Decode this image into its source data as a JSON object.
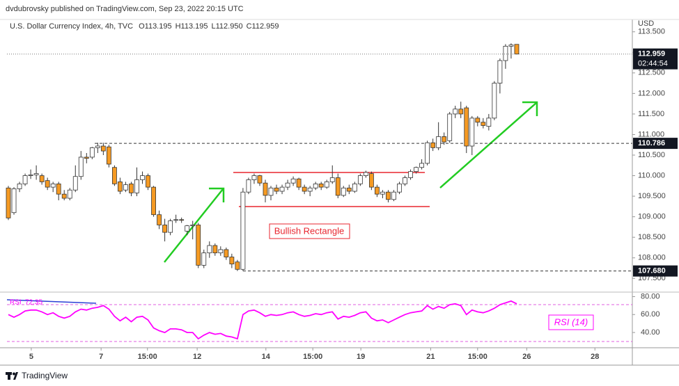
{
  "header": "dvdubrovsky published on TradingView.com, Sep 23, 2022 20:15 UTC",
  "footer": "TradingView",
  "chart_data": {
    "type": "candlestick",
    "legend": {
      "symbol": "U.S. Dollar Currency Index, 4h, TVC",
      "ohlc": [
        "O113.195",
        "H113.195",
        "L112.950",
        "C112.959"
      ]
    },
    "currency": "USD",
    "up_color": "#ffffff",
    "down_color": "#f59a23",
    "wick_color": "#333333",
    "candles": [
      [
        109.7,
        109.75,
        108.92,
        108.97
      ],
      [
        109.1,
        109.72,
        109.05,
        109.68
      ],
      [
        109.68,
        109.85,
        109.6,
        109.8
      ],
      [
        109.8,
        110.05,
        109.75,
        110.0
      ],
      [
        110.0,
        110.15,
        109.92,
        110.02
      ],
      [
        110.02,
        110.25,
        109.9,
        110.05
      ],
      [
        110.0,
        110.05,
        109.78,
        109.85
      ],
      [
        109.88,
        109.95,
        109.65,
        109.72
      ],
      [
        109.72,
        109.85,
        109.6,
        109.8
      ],
      [
        109.8,
        109.85,
        109.4,
        109.55
      ],
      [
        109.55,
        109.65,
        109.4,
        109.45
      ],
      [
        109.45,
        109.7,
        109.4,
        109.65
      ],
      [
        109.65,
        110.25,
        109.6,
        109.98
      ],
      [
        109.98,
        110.6,
        109.9,
        110.45
      ],
      [
        110.45,
        110.55,
        110.3,
        110.42
      ],
      [
        110.45,
        110.7,
        110.4,
        110.68
      ],
      [
        110.68,
        110.8,
        110.55,
        110.72
      ],
      [
        110.72,
        110.8,
        110.5,
        110.6
      ],
      [
        110.7,
        110.75,
        110.2,
        110.28
      ],
      [
        110.2,
        110.25,
        109.75,
        109.8
      ],
      [
        109.85,
        109.95,
        109.55,
        109.62
      ],
      [
        109.65,
        109.85,
        109.6,
        109.78
      ],
      [
        109.8,
        109.85,
        109.5,
        109.58
      ],
      [
        109.58,
        110.2,
        109.5,
        109.9
      ],
      [
        109.9,
        110.1,
        109.8,
        110.0
      ],
      [
        110.0,
        110.05,
        109.65,
        109.72
      ],
      [
        109.72,
        109.75,
        109.0,
        109.05
      ],
      [
        109.05,
        109.15,
        108.7,
        108.8
      ],
      [
        108.8,
        108.95,
        108.4,
        108.62
      ],
      [
        108.62,
        108.95,
        108.55,
        108.9
      ],
      [
        108.92,
        109.05,
        108.85,
        108.93
      ],
      [
        108.93,
        108.98,
        108.85,
        108.92
      ],
      [
        108.65,
        108.8,
        108.55,
        108.78
      ],
      [
        108.78,
        108.9,
        108.45,
        108.8
      ],
      [
        108.8,
        108.85,
        107.75,
        107.82
      ],
      [
        107.82,
        108.2,
        107.75,
        108.12
      ],
      [
        108.12,
        108.4,
        108.0,
        108.3
      ],
      [
        108.3,
        108.35,
        108.05,
        108.12
      ],
      [
        108.12,
        108.28,
        108.05,
        108.2
      ],
      [
        108.2,
        108.25,
        107.95,
        108.02
      ],
      [
        108.02,
        108.1,
        107.75,
        107.85
      ],
      [
        107.9,
        107.95,
        107.68,
        107.72
      ],
      [
        107.72,
        109.7,
        107.68,
        109.6
      ],
      [
        109.6,
        109.95,
        109.55,
        109.9
      ],
      [
        109.9,
        110.05,
        109.8,
        110.0
      ],
      [
        110.0,
        110.02,
        109.75,
        109.82
      ],
      [
        109.82,
        109.9,
        109.35,
        109.52
      ],
      [
        109.52,
        109.75,
        109.4,
        109.7
      ],
      [
        109.7,
        109.78,
        109.55,
        109.62
      ],
      [
        109.62,
        109.78,
        109.55,
        109.72
      ],
      [
        109.72,
        109.9,
        109.65,
        109.82
      ],
      [
        109.82,
        109.98,
        109.75,
        109.92
      ],
      [
        109.92,
        109.95,
        109.65,
        109.72
      ],
      [
        109.72,
        109.78,
        109.55,
        109.62
      ],
      [
        109.62,
        109.75,
        109.5,
        109.7
      ],
      [
        109.7,
        109.85,
        109.65,
        109.8
      ],
      [
        109.8,
        109.85,
        109.65,
        109.72
      ],
      [
        109.72,
        109.9,
        109.68,
        109.85
      ],
      [
        109.85,
        110.25,
        109.8,
        109.95
      ],
      [
        109.95,
        110.05,
        109.45,
        109.52
      ],
      [
        109.52,
        109.75,
        109.48,
        109.7
      ],
      [
        109.7,
        109.78,
        109.55,
        109.62
      ],
      [
        109.62,
        109.85,
        109.58,
        109.8
      ],
      [
        109.8,
        110.05,
        109.75,
        110.0
      ],
      [
        110.0,
        110.12,
        109.95,
        110.08
      ],
      [
        110.05,
        110.1,
        109.65,
        109.72
      ],
      [
        109.72,
        109.78,
        109.48,
        109.55
      ],
      [
        109.55,
        109.65,
        109.45,
        109.6
      ],
      [
        109.6,
        109.65,
        109.35,
        109.42
      ],
      [
        109.42,
        109.65,
        109.38,
        109.6
      ],
      [
        109.6,
        109.85,
        109.55,
        109.8
      ],
      [
        109.8,
        110.0,
        109.75,
        109.95
      ],
      [
        109.95,
        110.15,
        109.9,
        110.1
      ],
      [
        110.1,
        110.22,
        110.05,
        110.2
      ],
      [
        110.2,
        110.4,
        110.15,
        110.3
      ],
      [
        110.3,
        110.85,
        110.25,
        110.8
      ],
      [
        110.8,
        110.9,
        110.6,
        110.68
      ],
      [
        110.68,
        111.3,
        110.62,
        110.95
      ],
      [
        110.95,
        111.05,
        110.75,
        110.82
      ],
      [
        110.85,
        111.55,
        110.8,
        111.5
      ],
      [
        111.5,
        111.7,
        111.4,
        111.62
      ],
      [
        111.62,
        111.8,
        111.4,
        111.5
      ],
      [
        111.65,
        111.7,
        110.55,
        110.72
      ],
      [
        110.72,
        111.45,
        110.5,
        111.4
      ],
      [
        111.4,
        111.45,
        111.2,
        111.3
      ],
      [
        111.3,
        111.4,
        111.15,
        111.22
      ],
      [
        111.2,
        111.5,
        111.1,
        111.4
      ],
      [
        111.4,
        112.3,
        111.35,
        112.25
      ],
      [
        112.25,
        112.85,
        112.0,
        112.8
      ],
      [
        112.8,
        113.2,
        112.6,
        113.15
      ],
      [
        113.15,
        113.22,
        112.85,
        113.18
      ],
      [
        113.195,
        113.195,
        112.95,
        112.959
      ]
    ],
    "xlim": [
      -0.25,
      111.7
    ],
    "xticks": [
      {
        "value": 4.1,
        "label": "5"
      },
      {
        "value": 16.6,
        "label": "7"
      },
      {
        "value": 24.9,
        "label": "15:00"
      },
      {
        "value": 33.8,
        "label": "12"
      },
      {
        "value": 46.1,
        "label": "14"
      },
      {
        "value": 54.5,
        "label": "15:00"
      },
      {
        "value": 63.1,
        "label": "19"
      },
      {
        "value": 75.6,
        "label": "21"
      },
      {
        "value": 84.0,
        "label": "15:00"
      },
      {
        "value": 92.8,
        "label": "26"
      },
      {
        "value": 105.0,
        "label": "28"
      }
    ],
    "ylim": [
      107.2,
      113.8
    ],
    "yticks": [
      {
        "value": 107.5,
        "label": "107.500"
      },
      {
        "value": 108,
        "label": "108.000"
      },
      {
        "value": 108.5,
        "label": "108.500"
      },
      {
        "value": 109,
        "label": "109.000"
      },
      {
        "value": 109.5,
        "label": "109.500"
      },
      {
        "value": 110,
        "label": "110.000"
      },
      {
        "value": 110.5,
        "label": "110.500"
      },
      {
        "value": 111,
        "label": "111.000"
      },
      {
        "value": 111.5,
        "label": "111.500"
      },
      {
        "value": 112,
        "label": "112.000"
      },
      {
        "value": 112.5,
        "label": "112.500"
      },
      {
        "value": 113,
        "label": "113.000"
      },
      {
        "value": 113.5,
        "label": "113.500"
      }
    ],
    "last_price": 112.959,
    "countdown": "02:44:54",
    "price_lines": [
      {
        "value": 110.786,
        "label": "110.786"
      },
      {
        "value": 107.68,
        "label": "107.680"
      }
    ],
    "annotation": "Bullish Rectangle",
    "rsi": {
      "name": "RSI",
      "value": 72.35,
      "title": "RSI (14)",
      "color": "#ff00ff",
      "values": [
        60,
        57,
        60,
        64,
        65,
        65,
        63,
        60,
        62,
        58,
        56,
        58,
        63,
        66,
        65,
        67,
        68,
        70,
        66,
        58,
        53,
        57,
        52,
        57,
        58,
        54,
        45,
        42,
        40,
        44,
        44,
        43,
        40,
        40,
        33,
        37,
        40,
        38,
        39,
        36,
        35,
        33,
        60,
        64,
        65,
        62,
        58,
        60,
        59,
        60,
        62,
        63,
        60,
        58,
        59,
        61,
        60,
        62,
        63,
        55,
        58,
        57,
        59,
        62,
        63,
        56,
        53,
        54,
        51,
        54,
        57,
        60,
        62,
        63,
        64,
        70,
        66,
        69,
        67,
        71,
        72,
        70,
        60,
        65,
        63,
        62,
        64,
        67,
        71,
        73,
        75,
        72
      ],
      "ylim": [
        23,
        85
      ],
      "yticks": [
        {
          "value": 40,
          "label": "40.00"
        },
        {
          "value": 60,
          "label": "60.00"
        },
        {
          "value": 80,
          "label": "80.00"
        }
      ]
    }
  }
}
